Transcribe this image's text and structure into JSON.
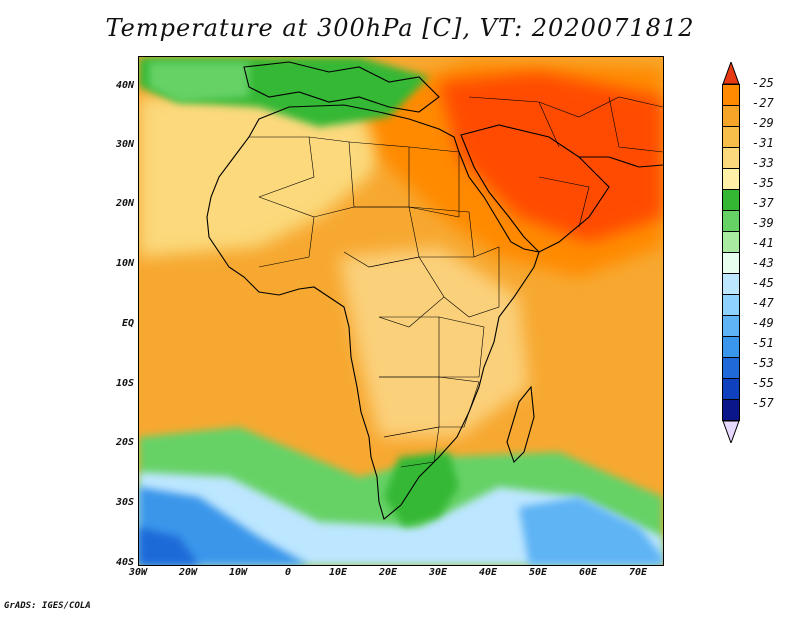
{
  "title": "Temperature at 300hPa [C], VT: 2020071812",
  "credit": "GrADS: IGES/COLA",
  "lat_labels": [
    "40N",
    "30N",
    "20N",
    "10N",
    "EQ",
    "10S",
    "20S",
    "30S",
    "40S"
  ],
  "lon_labels": [
    "30W",
    "20W",
    "10W",
    "0",
    "10E",
    "20E",
    "30E",
    "40E",
    "50E",
    "60E",
    "70E"
  ],
  "colorbar": {
    "levels": [
      "-25",
      "-27",
      "-29",
      "-31",
      "-33",
      "-35",
      "-37",
      "-39",
      "-41",
      "-43",
      "-45",
      "-47",
      "-49",
      "-51",
      "-53",
      "-55",
      "-57"
    ],
    "colors": [
      "#ff4c00",
      "#ff8a00",
      "#f7a528",
      "#f8be4a",
      "#fbd97c",
      "#fff0a8",
      "#34b834",
      "#66d266",
      "#a8eba0",
      "#e8fff0",
      "#bde6ff",
      "#8ed2ff",
      "#5eb4f4",
      "#3a96ea",
      "#1f6ad8",
      "#0f40bd",
      "#0a168a",
      "#0a0c5c"
    ],
    "top_arrow_color": "#e83a12",
    "bottom_arrow_color": "#e6d8ff"
  }
}
